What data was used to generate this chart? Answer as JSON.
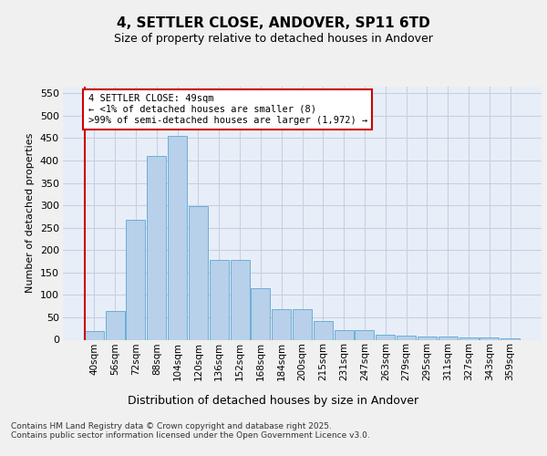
{
  "title": "4, SETTLER CLOSE, ANDOVER, SP11 6TD",
  "subtitle": "Size of property relative to detached houses in Andover",
  "xlabel": "Distribution of detached houses by size in Andover",
  "ylabel": "Number of detached properties",
  "categories": [
    "40sqm",
    "56sqm",
    "72sqm",
    "88sqm",
    "104sqm",
    "120sqm",
    "136sqm",
    "152sqm",
    "168sqm",
    "184sqm",
    "200sqm",
    "215sqm",
    "231sqm",
    "247sqm",
    "263sqm",
    "279sqm",
    "295sqm",
    "311sqm",
    "327sqm",
    "343sqm",
    "359sqm"
  ],
  "values": [
    20,
    65,
    268,
    410,
    455,
    298,
    178,
    178,
    115,
    68,
    68,
    42,
    22,
    22,
    12,
    10,
    8,
    8,
    5,
    5,
    4
  ],
  "bar_color": "#b8d0ea",
  "bar_edge_color": "#6baed6",
  "annotation_box_text": "4 SETTLER CLOSE: 49sqm\n← <1% of detached houses are smaller (8)\n>99% of semi-detached houses are larger (1,972) →",
  "annotation_box_color": "#ffffff",
  "annotation_box_edge_color": "#cc0000",
  "annotation_line_color": "#cc0000",
  "grid_color": "#c8d0e0",
  "background_color": "#e8eef8",
  "fig_background_color": "#f0f0f0",
  "footer_text": "Contains HM Land Registry data © Crown copyright and database right 2025.\nContains public sector information licensed under the Open Government Licence v3.0.",
  "ylim_max": 565,
  "yticks": [
    0,
    50,
    100,
    150,
    200,
    250,
    300,
    350,
    400,
    450,
    500,
    550
  ]
}
